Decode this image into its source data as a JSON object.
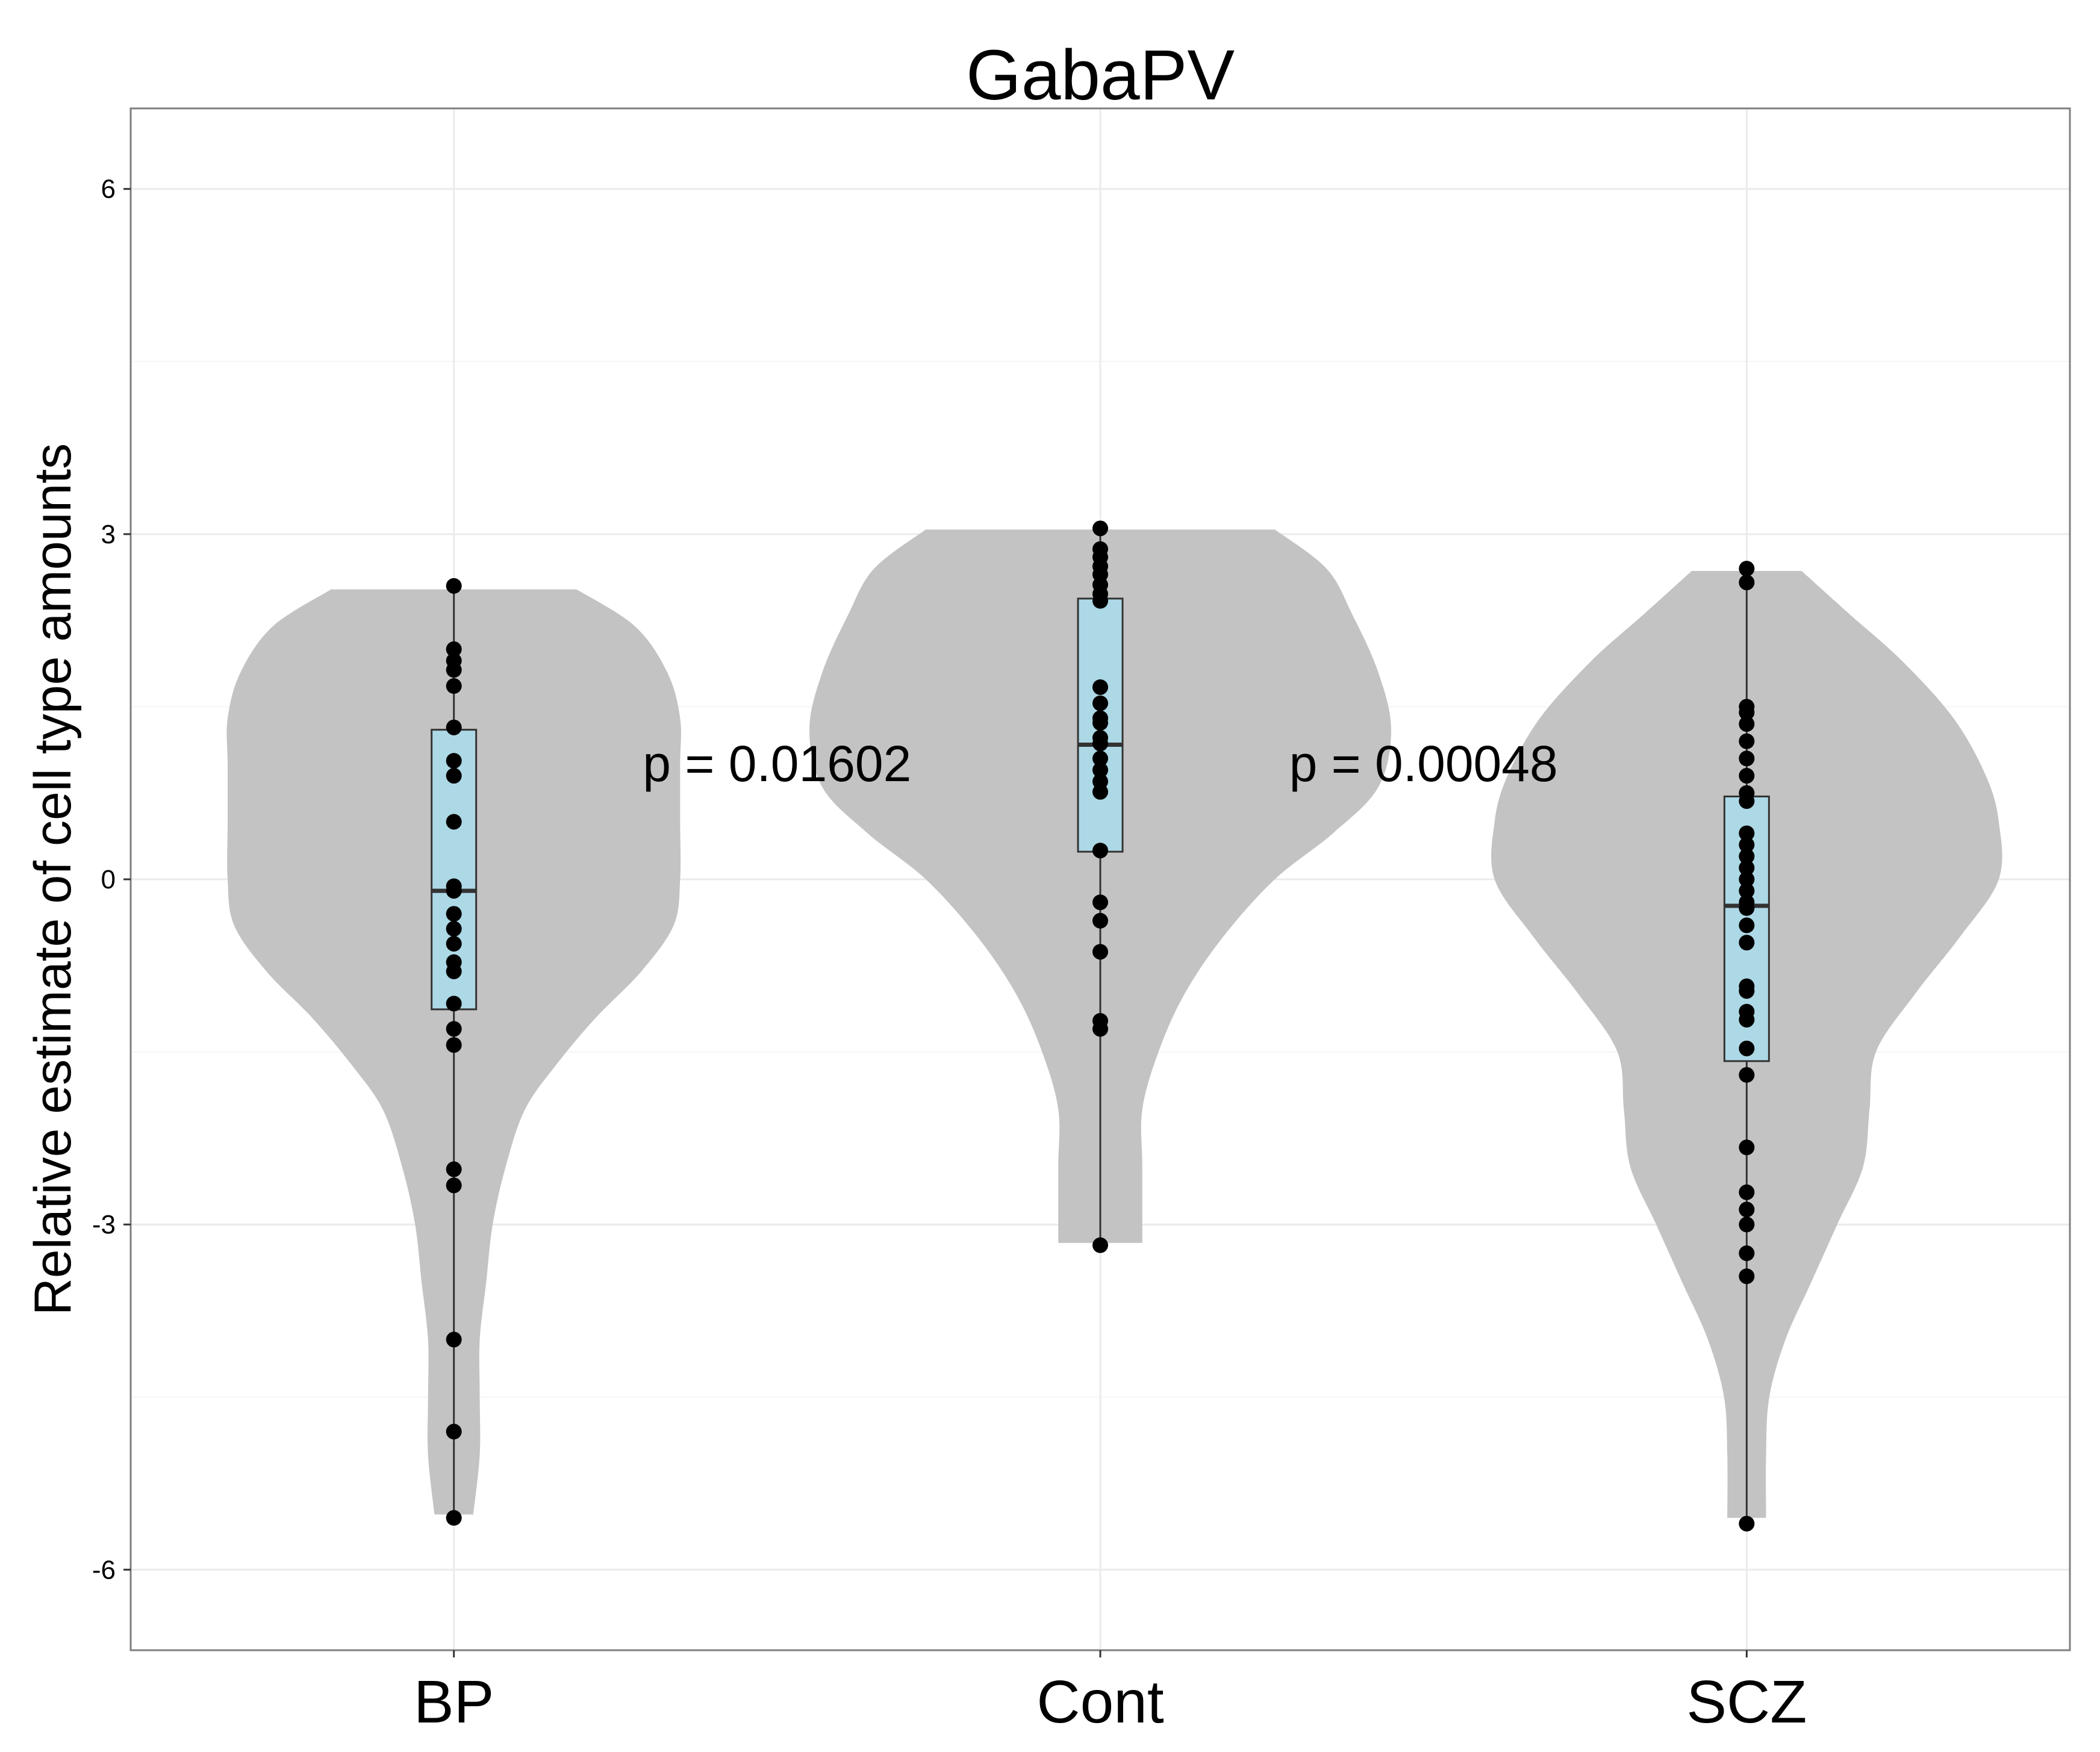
{
  "chart_data": {
    "type": "violin",
    "title": "GabaPV",
    "xlabel": "",
    "ylabel": "Relative estimate of cell type amounts",
    "categories": [
      "BP",
      "Cont",
      "SCZ"
    ],
    "ylim": [
      -6.7,
      6.7
    ],
    "y_ticks": [
      -6,
      -3,
      0,
      3,
      6
    ],
    "y_tick_labels": [
      "-6",
      "-3",
      "0",
      "3",
      "6"
    ],
    "grid": true,
    "legend": "none",
    "colors": {
      "violin": "#c3c3c3",
      "box": "#add8e6",
      "box_outline": "#333333",
      "point": "#000000",
      "grid_major": "#ebebeb",
      "grid_minor": "#f5f5f5",
      "panel_border": "#7f7f7f"
    },
    "annotations": [
      {
        "text": "p = 0.01602",
        "x_between": [
          "BP",
          "Cont"
        ],
        "y": 1.0
      },
      {
        "text": "p = 0.00048",
        "x_between": [
          "Cont",
          "SCZ"
        ],
        "y": 1.0
      }
    ],
    "series": [
      {
        "category": "BP",
        "points": [
          2.55,
          2.0,
          1.9,
          1.82,
          1.68,
          1.32,
          1.03,
          0.9,
          0.5,
          -0.06,
          -0.1,
          -0.3,
          -0.43,
          -0.56,
          -0.72,
          -0.8,
          -1.08,
          -1.3,
          -1.44,
          -2.52,
          -2.66,
          -4.0,
          -4.8,
          -5.55
        ],
        "box": {
          "q1": -1.13,
          "median": -0.1,
          "q3": 1.3,
          "whisker_low": -5.55,
          "whisker_high": 2.55
        },
        "violin": [
          {
            "y": 2.52,
            "w": 0.19
          },
          {
            "y": 2.2,
            "w": 0.28
          },
          {
            "y": 1.8,
            "w": 0.33
          },
          {
            "y": 1.4,
            "w": 0.35
          },
          {
            "y": 1.0,
            "w": 0.35
          },
          {
            "y": 0.5,
            "w": 0.35
          },
          {
            "y": 0.0,
            "w": 0.35
          },
          {
            "y": -0.4,
            "w": 0.34
          },
          {
            "y": -0.8,
            "w": 0.29
          },
          {
            "y": -1.2,
            "w": 0.22
          },
          {
            "y": -1.6,
            "w": 0.16
          },
          {
            "y": -2.0,
            "w": 0.11
          },
          {
            "y": -2.5,
            "w": 0.08
          },
          {
            "y": -3.0,
            "w": 0.06
          },
          {
            "y": -3.5,
            "w": 0.05
          },
          {
            "y": -4.0,
            "w": 0.04
          },
          {
            "y": -4.5,
            "w": 0.04
          },
          {
            "y": -5.0,
            "w": 0.04
          },
          {
            "y": -5.52,
            "w": 0.03
          }
        ]
      },
      {
        "category": "Cont",
        "points": [
          3.05,
          2.87,
          2.8,
          2.72,
          2.65,
          2.56,
          2.48,
          2.42,
          1.67,
          1.53,
          1.4,
          1.36,
          1.23,
          1.18,
          1.05,
          0.95,
          0.85,
          0.76,
          0.25,
          -0.2,
          -0.36,
          -0.63,
          -1.23,
          -1.3,
          -3.18
        ],
        "box": {
          "q1": 0.24,
          "median": 1.17,
          "q3": 2.44,
          "whisker_low": -3.18,
          "whisker_high": 3.05
        },
        "violin": [
          {
            "y": 3.04,
            "w": 0.27
          },
          {
            "y": 2.7,
            "w": 0.35
          },
          {
            "y": 2.3,
            "w": 0.39
          },
          {
            "y": 1.8,
            "w": 0.43
          },
          {
            "y": 1.3,
            "w": 0.45
          },
          {
            "y": 0.8,
            "w": 0.43
          },
          {
            "y": 0.4,
            "w": 0.36
          },
          {
            "y": 0.0,
            "w": 0.27
          },
          {
            "y": -0.5,
            "w": 0.19
          },
          {
            "y": -1.0,
            "w": 0.13
          },
          {
            "y": -1.5,
            "w": 0.09
          },
          {
            "y": -2.0,
            "w": 0.065
          },
          {
            "y": -2.5,
            "w": 0.065
          },
          {
            "y": -3.16,
            "w": 0.065
          }
        ]
      },
      {
        "category": "SCZ",
        "points": [
          2.7,
          2.58,
          1.5,
          1.45,
          1.35,
          1.2,
          1.05,
          0.9,
          0.75,
          0.68,
          0.4,
          0.3,
          0.2,
          0.1,
          0.0,
          -0.1,
          -0.2,
          -0.25,
          -0.4,
          -0.55,
          -0.93,
          -0.97,
          -1.15,
          -1.22,
          -1.47,
          -1.7,
          -2.33,
          -2.72,
          -2.87,
          -3.0,
          -3.25,
          -3.45,
          -5.6
        ],
        "box": {
          "q1": -1.58,
          "median": -0.23,
          "q3": 0.72,
          "whisker_low": -5.6,
          "whisker_high": 2.7
        },
        "violin": [
          {
            "y": 2.68,
            "w": 0.085
          },
          {
            "y": 2.3,
            "w": 0.16
          },
          {
            "y": 1.9,
            "w": 0.24
          },
          {
            "y": 1.4,
            "w": 0.32
          },
          {
            "y": 0.9,
            "w": 0.37
          },
          {
            "y": 0.5,
            "w": 0.39
          },
          {
            "y": 0.0,
            "w": 0.39
          },
          {
            "y": -0.5,
            "w": 0.33
          },
          {
            "y": -1.0,
            "w": 0.26
          },
          {
            "y": -1.5,
            "w": 0.2
          },
          {
            "y": -2.0,
            "w": 0.19
          },
          {
            "y": -2.5,
            "w": 0.18
          },
          {
            "y": -3.0,
            "w": 0.14
          },
          {
            "y": -3.5,
            "w": 0.1
          },
          {
            "y": -4.0,
            "w": 0.06
          },
          {
            "y": -4.5,
            "w": 0.035
          },
          {
            "y": -5.0,
            "w": 0.03
          },
          {
            "y": -5.55,
            "w": 0.03
          }
        ]
      }
    ]
  }
}
